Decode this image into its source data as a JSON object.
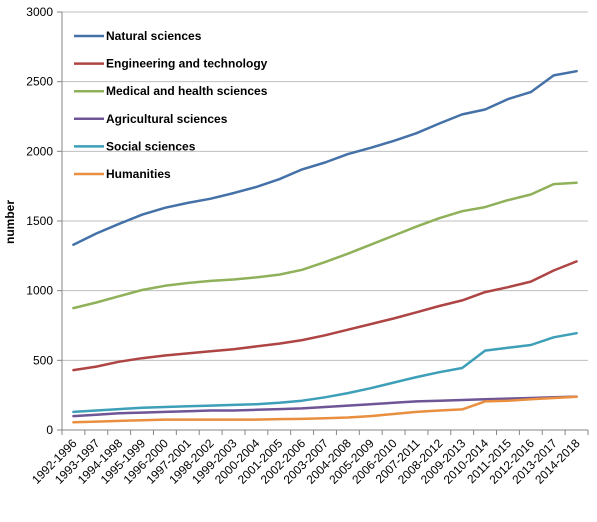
{
  "chart_data": {
    "type": "line",
    "title": "",
    "xlabel": "",
    "ylabel": "number",
    "ylim": [
      0,
      3000
    ],
    "yticks": [
      0,
      500,
      1000,
      1500,
      2000,
      2500,
      3000
    ],
    "grid": "horizontal",
    "legend_position": "top-left",
    "categories": [
      "1992-1996",
      "1993-1997",
      "1994-1998",
      "1995-1999",
      "1996-2000",
      "1997-2001",
      "1998-2002",
      "1999-2003",
      "2000-2004",
      "2001-2005",
      "2002-2006",
      "2003-2007",
      "2004-2008",
      "2005-2009",
      "2006-2010",
      "2007-2011",
      "2008-2012",
      "2009-2013",
      "2010-2014",
      "2011-2015",
      "2012-2016",
      "2013-2017",
      "2014-2018"
    ],
    "series": [
      {
        "name": "Natural sciences",
        "color": "#4472a8",
        "values": [
          1330,
          1410,
          1480,
          1545,
          1595,
          1630,
          1660,
          1700,
          1745,
          1800,
          1870,
          1920,
          1980,
          2025,
          2075,
          2130,
          2200,
          2265,
          2300,
          2375,
          2425,
          2545,
          2575
        ]
      },
      {
        "name": "Engineering and technology",
        "color": "#ae4544",
        "values": [
          430,
          455,
          490,
          515,
          535,
          550,
          565,
          580,
          600,
          620,
          645,
          680,
          720,
          760,
          800,
          845,
          890,
          930,
          990,
          1025,
          1065,
          1145,
          1210
        ]
      },
      {
        "name": "Medical and health sciences",
        "color": "#8fb15a",
        "values": [
          875,
          915,
          960,
          1005,
          1035,
          1055,
          1070,
          1080,
          1095,
          1115,
          1150,
          1205,
          1265,
          1330,
          1395,
          1460,
          1520,
          1570,
          1600,
          1650,
          1690,
          1765,
          1775
        ]
      },
      {
        "name": "Agricultural sciences",
        "color": "#6e5596",
        "values": [
          100,
          110,
          120,
          125,
          130,
          135,
          140,
          140,
          145,
          150,
          155,
          165,
          175,
          185,
          195,
          205,
          210,
          215,
          220,
          225,
          230,
          235,
          240
        ]
      },
      {
        "name": "Social sciences",
        "color": "#3d9fb8",
        "values": [
          130,
          140,
          150,
          160,
          165,
          170,
          175,
          180,
          185,
          195,
          210,
          235,
          265,
          300,
          340,
          380,
          415,
          445,
          570,
          590,
          610,
          665,
          695
        ]
      },
      {
        "name": "Humanities",
        "color": "#e98f3f",
        "values": [
          55,
          60,
          65,
          70,
          75,
          75,
          75,
          75,
          75,
          78,
          80,
          85,
          90,
          100,
          115,
          130,
          140,
          148,
          205,
          210,
          220,
          230,
          238
        ]
      }
    ]
  }
}
